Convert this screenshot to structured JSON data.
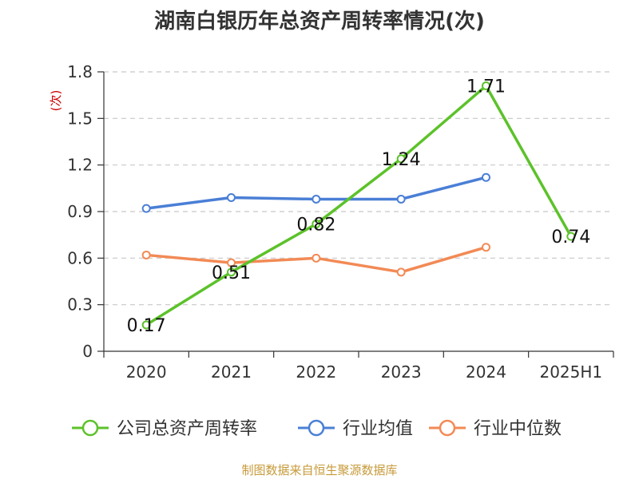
{
  "title": "湖南白银历年总资产周转率情况(次)",
  "source": "制图数据来自恒生聚源数据库",
  "chart_data": {
    "type": "line",
    "title": "湖南白银历年总资产周转率情况(次)",
    "ylabel": "(次)",
    "xlabel": "",
    "categories": [
      "2020",
      "2021",
      "2022",
      "2023",
      "2024",
      "2025H1"
    ],
    "ylim": [
      0,
      1.8
    ],
    "yticks": [
      "0",
      "0.3",
      "0.6",
      "0.9",
      "1.2",
      "1.5",
      "1.8"
    ],
    "grid": true,
    "legend_position": "bottom",
    "series": [
      {
        "name": "公司总资产周转率",
        "color": "#5cc22a",
        "values": [
          0.17,
          0.51,
          0.82,
          1.24,
          1.71,
          0.74
        ],
        "labels": [
          "0.17",
          "0.51",
          "0.82",
          "1.24",
          "1.71",
          "0.74"
        ]
      },
      {
        "name": "行业均值",
        "color": "#4a7fd6",
        "values": [
          0.92,
          0.99,
          0.98,
          0.98,
          1.12,
          null
        ]
      },
      {
        "name": "行业中位数",
        "color": "#f28a55",
        "values": [
          0.62,
          0.57,
          0.6,
          0.51,
          0.67,
          null
        ]
      }
    ]
  }
}
